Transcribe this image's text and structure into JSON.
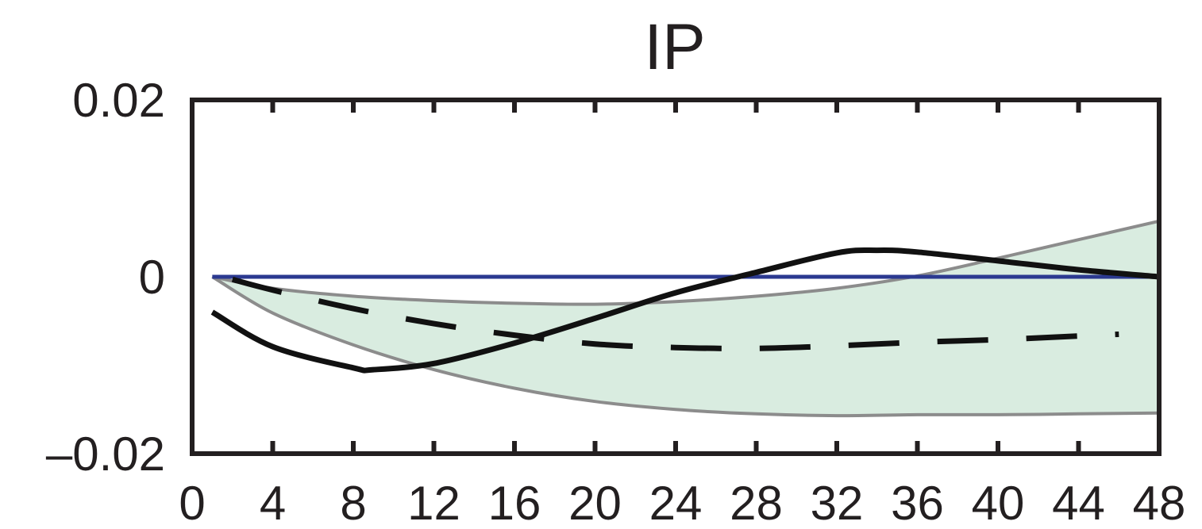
{
  "chart_data": {
    "type": "line",
    "title": "IP",
    "xlabel": "",
    "ylabel": "",
    "xlim": [
      0,
      48
    ],
    "ylim": [
      -0.02,
      0.02
    ],
    "x_ticks": [
      0,
      4,
      8,
      12,
      16,
      20,
      24,
      28,
      32,
      36,
      40,
      44,
      48
    ],
    "x_tick_labels": [
      "0",
      "4",
      "8",
      "12",
      "16",
      "20",
      "24",
      "28",
      "32",
      "36",
      "40",
      "44",
      "48"
    ],
    "y_ticks": [
      0.02,
      0,
      -0.02
    ],
    "y_tick_labels": [
      "0.02",
      "0",
      "–0.02"
    ],
    "grid": false,
    "legend": "none",
    "zero_line": {
      "y": 0,
      "color": "#2b3990"
    },
    "band": {
      "fill": "#d9ece0",
      "edge_color": "#8c8c8c",
      "x": [
        1,
        4,
        8,
        12,
        16,
        20,
        24,
        28,
        32,
        36,
        40,
        44,
        48
      ],
      "upper": [
        0.0,
        -0.0013,
        -0.0022,
        -0.0027,
        -0.003,
        -0.0031,
        -0.0028,
        -0.0022,
        -0.0013,
        0.0001,
        0.0021,
        0.0042,
        0.0063
      ],
      "lower": [
        0.0,
        -0.0041,
        -0.0077,
        -0.0105,
        -0.0126,
        -0.0141,
        -0.015,
        -0.0155,
        -0.0157,
        -0.0156,
        -0.0156,
        -0.0155,
        -0.0154
      ]
    },
    "series": [
      {
        "style": "solid",
        "color": "#111111",
        "x": [
          1,
          4,
          8,
          9,
          12,
          16,
          20,
          24,
          28,
          32,
          34,
          36,
          40,
          44,
          48
        ],
        "y": [
          -0.004,
          -0.0079,
          -0.0103,
          -0.0105,
          -0.0098,
          -0.0075,
          -0.0047,
          -0.0018,
          0.0005,
          0.0027,
          0.003,
          0.0028,
          0.0018,
          0.0008,
          0.0
        ]
      },
      {
        "style": "dashed",
        "color": "#111111",
        "x": [
          2,
          4,
          8,
          12,
          16,
          20,
          24,
          28,
          32,
          36,
          40,
          44,
          46
        ],
        "y": [
          -0.0003,
          -0.0015,
          -0.0036,
          -0.0053,
          -0.0066,
          -0.0076,
          -0.008,
          -0.0081,
          -0.0078,
          -0.0074,
          -0.0071,
          -0.0067,
          -0.0065
        ]
      }
    ]
  }
}
